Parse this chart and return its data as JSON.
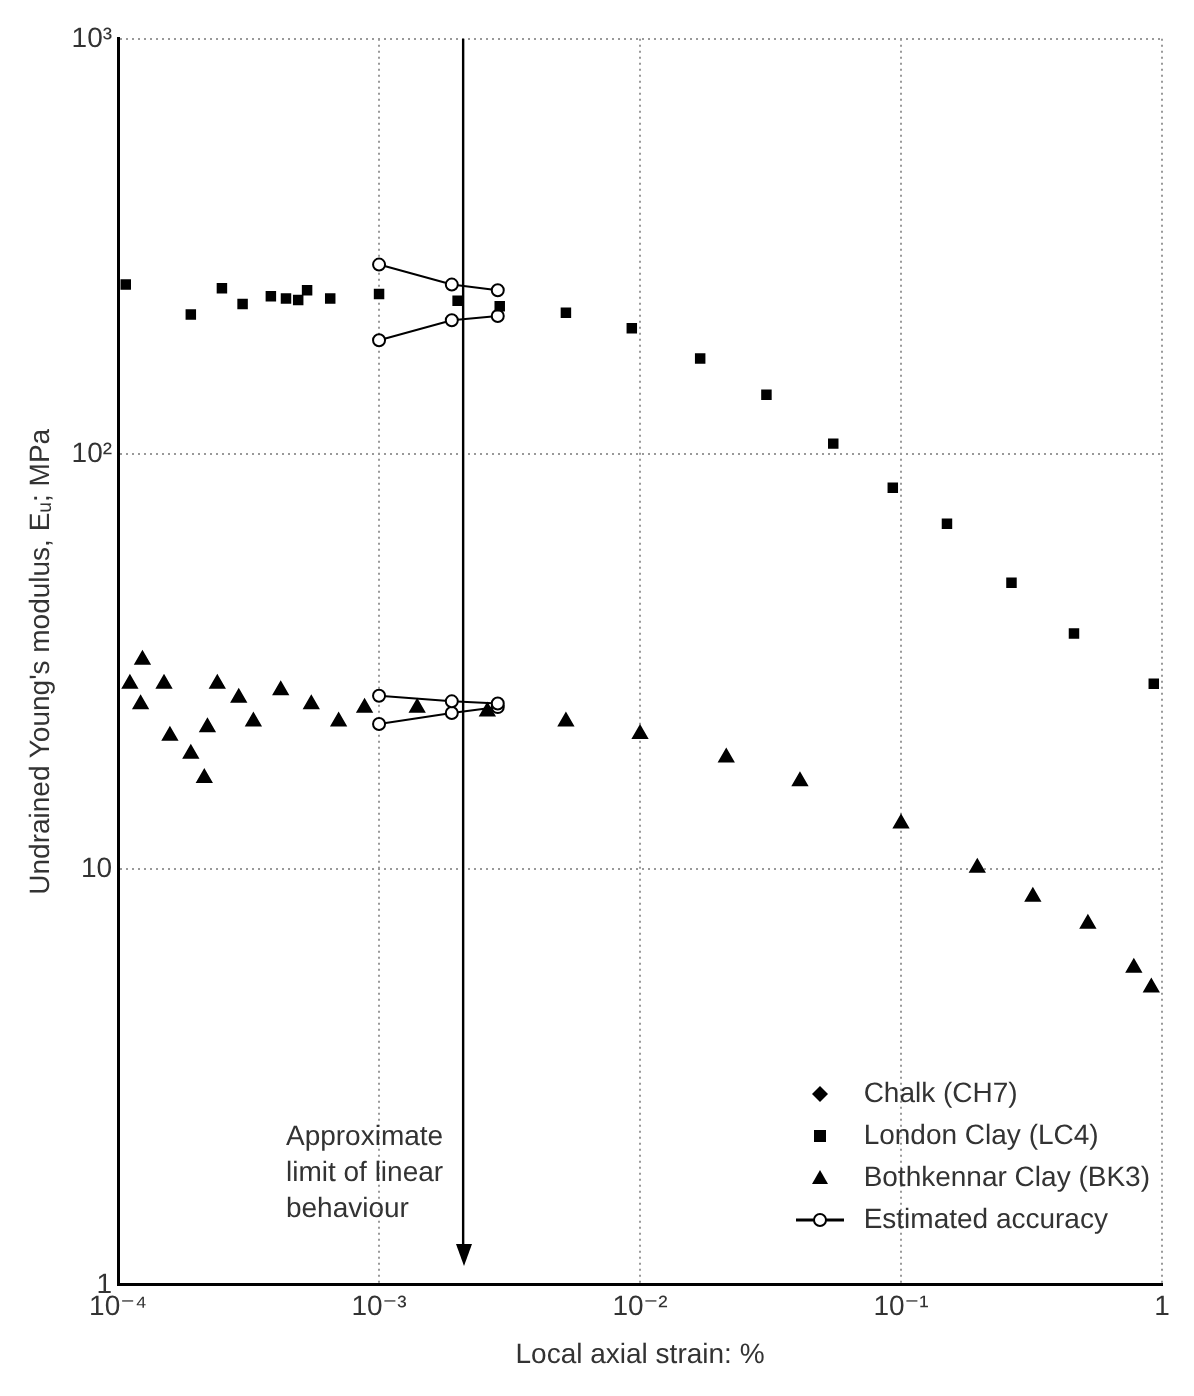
{
  "chart_data": {
    "type": "scatter",
    "xlabel": "Local axial strain: %",
    "ylabel": "Undrained Young's modulus, Eᵤ; MPa",
    "log": "xy",
    "grid": true,
    "legend": "bottom right",
    "xlim": [
      0.0001,
      1
    ],
    "ylim": [
      1,
      1000
    ],
    "xticks": [
      {
        "value": 0.0001,
        "label": "10⁻⁴"
      },
      {
        "value": 0.001,
        "label": "10⁻³"
      },
      {
        "value": 0.01,
        "label": "10⁻²"
      },
      {
        "value": 0.1,
        "label": "10⁻¹"
      },
      1
    ],
    "yticks": [
      1,
      10,
      {
        "value": 100,
        "label": "10²"
      },
      {
        "value": 1000,
        "label": "10³"
      }
    ],
    "ref_lines": [
      {
        "axis": "x",
        "value": 0.0021,
        "label": "Approximate limit of linear behaviour",
        "color": "#000000"
      }
    ],
    "series": [
      {
        "name": "Chalk (CH7)",
        "color": "#000000",
        "marker": "diamond"
      },
      {
        "name": "London Clay (LC4)",
        "color": "#000000",
        "marker": "square",
        "x": [
          0.000107,
          0.00019,
          0.00025,
          0.0003,
          0.000385,
          0.00044,
          0.00049,
          0.00053,
          0.00065,
          0.001,
          0.002,
          0.0029,
          0.0052,
          0.0093,
          0.017,
          0.0305,
          0.055,
          0.093,
          0.15,
          0.265,
          0.46,
          0.93
        ],
        "values": [
          256,
          217,
          251,
          230,
          240,
          237,
          235,
          248,
          237,
          243,
          234,
          227,
          219,
          201,
          170,
          139,
          106,
          83,
          68,
          49,
          37,
          28
        ]
      },
      {
        "name": "Bothkennar Clay (BK3)",
        "color": "#000000",
        "marker": "triangle",
        "x": [
          0.000111,
          0.000122,
          0.000124,
          0.00015,
          0.000158,
          0.00019,
          0.000214,
          0.00022,
          0.00024,
          0.00029,
          0.00033,
          0.00042,
          0.00055,
          0.0007,
          0.00088,
          0.0014,
          0.0026,
          0.0052,
          0.01,
          0.0214,
          0.041,
          0.1,
          0.196,
          0.32,
          0.52,
          0.78,
          0.91
        ],
        "values": [
          28,
          25,
          32,
          28,
          21,
          19,
          16.6,
          22,
          28,
          25.9,
          22.7,
          27,
          25,
          22.7,
          24.5,
          24.5,
          24,
          22.7,
          21.2,
          18.6,
          16.3,
          12.9,
          10.1,
          8.6,
          7.4,
          5.8,
          5.2
        ]
      },
      {
        "name": "Estimated accuracy",
        "type": "line",
        "color": "#000000",
        "marker": "circle",
        "x": [
          0.001,
          0.0019,
          0.00285
        ],
        "values": [
          286,
          256,
          248
        ]
      },
      {
        "type": "line",
        "color": "#000000",
        "marker": "circle",
        "x": [
          0.001,
          0.0019,
          0.00285
        ],
        "values": [
          188,
          210,
          215
        ]
      },
      {
        "type": "line",
        "color": "#000000",
        "marker": "circle",
        "x": [
          0.001,
          0.0019,
          0.00285
        ],
        "values": [
          26.2,
          25.4,
          25.1
        ]
      },
      {
        "type": "line",
        "color": "#000000",
        "marker": "circle",
        "x": [
          0.001,
          0.0019,
          0.00285
        ],
        "values": [
          22.4,
          23.8,
          24.6
        ]
      }
    ]
  }
}
